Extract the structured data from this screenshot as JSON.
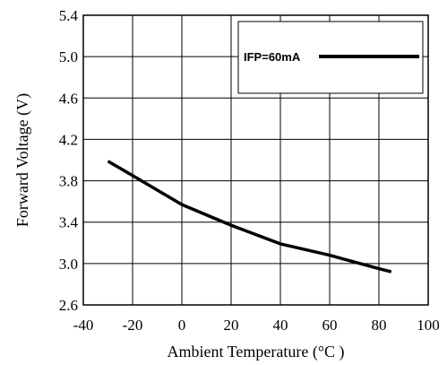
{
  "chart_data": {
    "type": "line",
    "title": "",
    "xlabel": "Ambient Temperature (°C )",
    "ylabel": "Forward Voltage (V)",
    "xlim": [
      -40,
      100
    ],
    "ylim": [
      2.6,
      5.4
    ],
    "grid": true,
    "legend_position": "top-right",
    "x_ticks": [
      -40,
      -20,
      0,
      20,
      40,
      60,
      80,
      100
    ],
    "x_tick_labels": [
      "-40",
      "-20",
      "0",
      "20",
      "40",
      "60",
      "80",
      "100"
    ],
    "y_ticks": [
      2.6,
      3.0,
      3.4,
      3.8,
      4.2,
      4.6,
      5.0,
      5.4
    ],
    "y_tick_labels": [
      "2.6",
      "3.0",
      "3.4",
      "3.8",
      "4.2",
      "4.6",
      "5.0",
      "5.4"
    ],
    "series": [
      {
        "name": "IFP=60mA",
        "color": "#000000",
        "x": [
          -30,
          -20,
          0,
          20,
          40,
          60,
          80,
          85
        ],
        "y": [
          3.99,
          3.85,
          3.57,
          3.37,
          3.19,
          3.08,
          2.95,
          2.92
        ]
      }
    ]
  }
}
